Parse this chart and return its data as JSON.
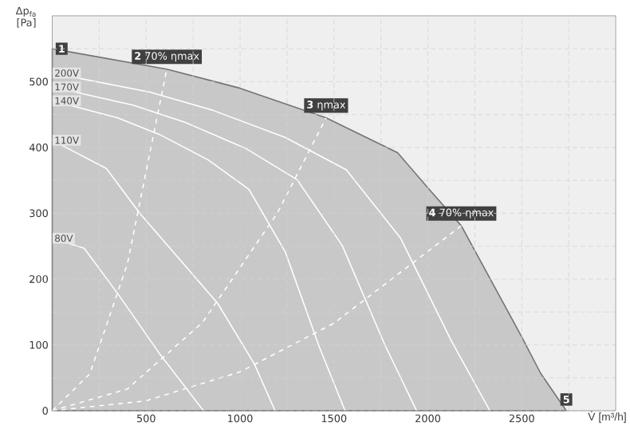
{
  "chart_data": {
    "type": "line",
    "xlabel": "V̇ [m³/h]",
    "ylabel": "Δp$_{fa}$ [Pa]",
    "xlim": [
      0,
      3000
    ],
    "ylim": [
      0,
      600
    ],
    "xticks": [
      {
        "value": 250,
        "label": null
      },
      500,
      {
        "value": 750,
        "label": null
      },
      1000,
      {
        "value": 1250,
        "label": null
      },
      1500,
      {
        "value": 1750,
        "label": null
      },
      2000,
      {
        "value": 2250,
        "label": null
      },
      2500,
      {
        "value": 2750,
        "label": null
      }
    ],
    "yticks": [
      0,
      {
        "value": 50,
        "label": null
      },
      100,
      {
        "value": 150,
        "label": null
      },
      200,
      {
        "value": 250,
        "label": null
      },
      300,
      {
        "value": 350,
        "label": null
      },
      400,
      {
        "value": 450,
        "label": null
      },
      500,
      {
        "value": 550,
        "label": null
      }
    ],
    "grid": true,
    "series": [
      {
        "type": "area",
        "color": "#c8c8c8",
        "x": [
          0,
          610,
          1000,
          1458,
          1839,
          2008,
          2178,
          2500,
          2600,
          2737
        ],
        "values": [
          550,
          519,
          490,
          445,
          392,
          336,
          281,
          112,
          57,
          0
        ]
      },
      {
        "name": "200V",
        "color": "#ffffff",
        "x": [
          0,
          520,
          850,
          1242,
          1566,
          1855,
          2127,
          2330
        ],
        "values": [
          513,
          484,
          457,
          415,
          366,
          262,
          105,
          0
        ]
      },
      {
        "name": "170V",
        "color": "#ffffff",
        "x": [
          0,
          433,
          708,
          1034,
          1304,
          1544,
          1771,
          1940
        ],
        "values": [
          492,
          464,
          438,
          398,
          351,
          251,
          100,
          0
        ]
      },
      {
        "name": "140V",
        "color": "#ffffff",
        "x": [
          0,
          348,
          569,
          831,
          1048,
          1241,
          1423,
          1559
        ],
        "values": [
          471,
          445,
          420,
          381,
          336,
          241,
          96,
          0
        ]
      },
      {
        "name": "110V",
        "color": "#ffffff",
        "x": [
          0,
          288,
          466,
          881,
          1076,
          1186
        ],
        "values": [
          411,
          368,
          300,
          163,
          71,
          0
        ]
      },
      {
        "name": "80V",
        "color": "#ffffff",
        "x": [
          0,
          170,
          356,
          568,
          805
        ],
        "values": [
          262,
          247,
          175,
          88,
          0
        ]
      },
      {
        "color": "#ffffff",
        "line_style": "dashed",
        "x": [
          0,
          200,
          400,
          610
        ],
        "values": [
          0,
          56,
          223,
          519
        ]
      },
      {
        "color": "#ffffff",
        "line_style": "dashed",
        "x": [
          0,
          400,
          800,
          1200,
          1458
        ],
        "values": [
          0,
          33,
          134,
          301,
          445
        ]
      },
      {
        "color": "#ffffff",
        "line_style": "dashed",
        "x": [
          0,
          500,
          1000,
          1500,
          2178
        ],
        "values": [
          0,
          15,
          59,
          133,
          281
        ]
      }
    ],
    "annotations": [
      {
        "text": "**1**",
        "x": 0,
        "y": 550
      },
      {
        "text": "**2** 70% ηmax",
        "x": 610,
        "y": 519
      },
      {
        "text": "**3** ηmax",
        "x": 1458,
        "y": 445
      },
      {
        "text": "**4** 70% ηmax",
        "x": 2178,
        "y": 281
      },
      {
        "text": "**5**",
        "x": 2737,
        "y": 0
      }
    ]
  }
}
